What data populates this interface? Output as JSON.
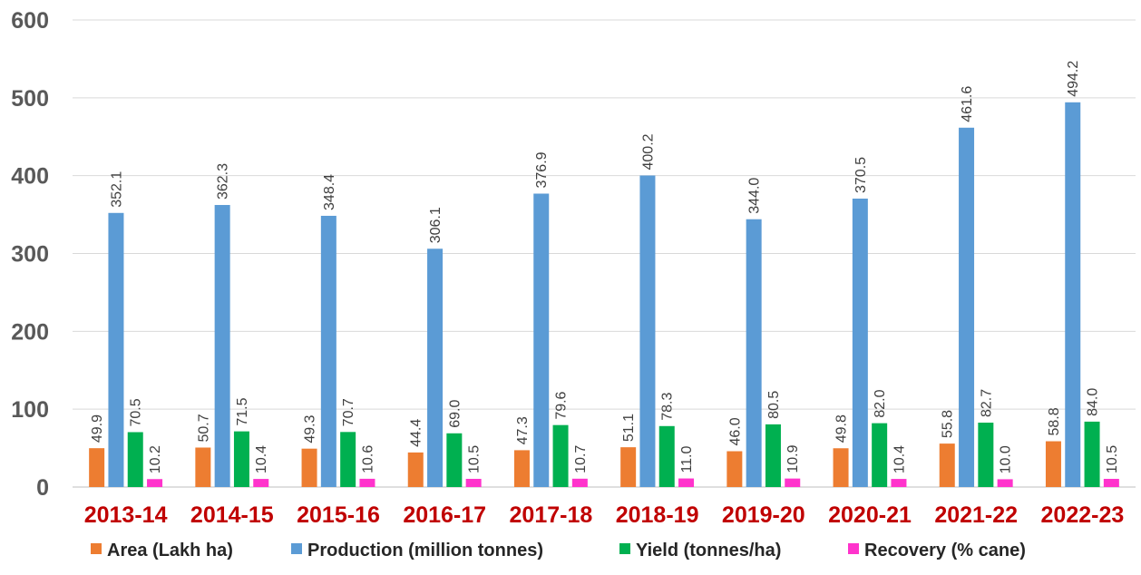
{
  "chart_data": {
    "type": "bar",
    "title": "",
    "xlabel": "",
    "ylabel": "",
    "ylim": [
      0,
      600
    ],
    "yticks": [
      "0",
      "100",
      "200",
      "300",
      "400",
      "500",
      "600"
    ],
    "grid": true,
    "legend_position": "bottom",
    "categories": [
      "2013-14",
      "2014-15",
      "2015-16",
      "2016-17",
      "2017-18",
      "2018-19",
      "2019-20",
      "2020-21",
      "2021-22",
      "2022-23"
    ],
    "series": [
      {
        "name": "Area (Lakh ha)",
        "color": "#ED7D31",
        "values": [
          49.9,
          50.7,
          49.3,
          44.4,
          47.3,
          51.1,
          46.0,
          49.8,
          55.8,
          58.8
        ],
        "labels": [
          "49.9",
          "50.7",
          "49.3",
          "44.4",
          "47.3",
          "51.1",
          "46.0",
          "49.8",
          "55.8",
          "58.8"
        ]
      },
      {
        "name": "Production (million tonnes)",
        "color": "#5B9BD5",
        "values": [
          352.1,
          362.3,
          348.4,
          306.1,
          376.9,
          400.2,
          344.0,
          370.5,
          461.6,
          494.2
        ],
        "labels": [
          "352.1",
          "362.3",
          "348.4",
          "306.1",
          "376.9",
          "400.2",
          "344.0",
          "370.5",
          "461.6",
          "494.2"
        ]
      },
      {
        "name": "Yield (tonnes/ha)",
        "color": "#00B050",
        "values": [
          70.5,
          71.5,
          70.7,
          69.0,
          79.6,
          78.3,
          80.5,
          82.0,
          82.7,
          84.0
        ],
        "labels": [
          "70.5",
          "71.5",
          "70.7",
          "69.0",
          "79.6",
          "78.3",
          "80.5",
          "82.0",
          "82.7",
          "84.0"
        ]
      },
      {
        "name": "Recovery (% cane)",
        "color": "#FF33CC",
        "values": [
          10.2,
          10.4,
          10.6,
          10.5,
          10.7,
          11.0,
          10.9,
          10.4,
          10.0,
          10.5
        ],
        "labels": [
          "10.2",
          "10.4",
          "10.6",
          "10.5",
          "10.7",
          "11.0",
          "10.9",
          "10.4",
          "10.0",
          "10.5"
        ]
      }
    ]
  }
}
